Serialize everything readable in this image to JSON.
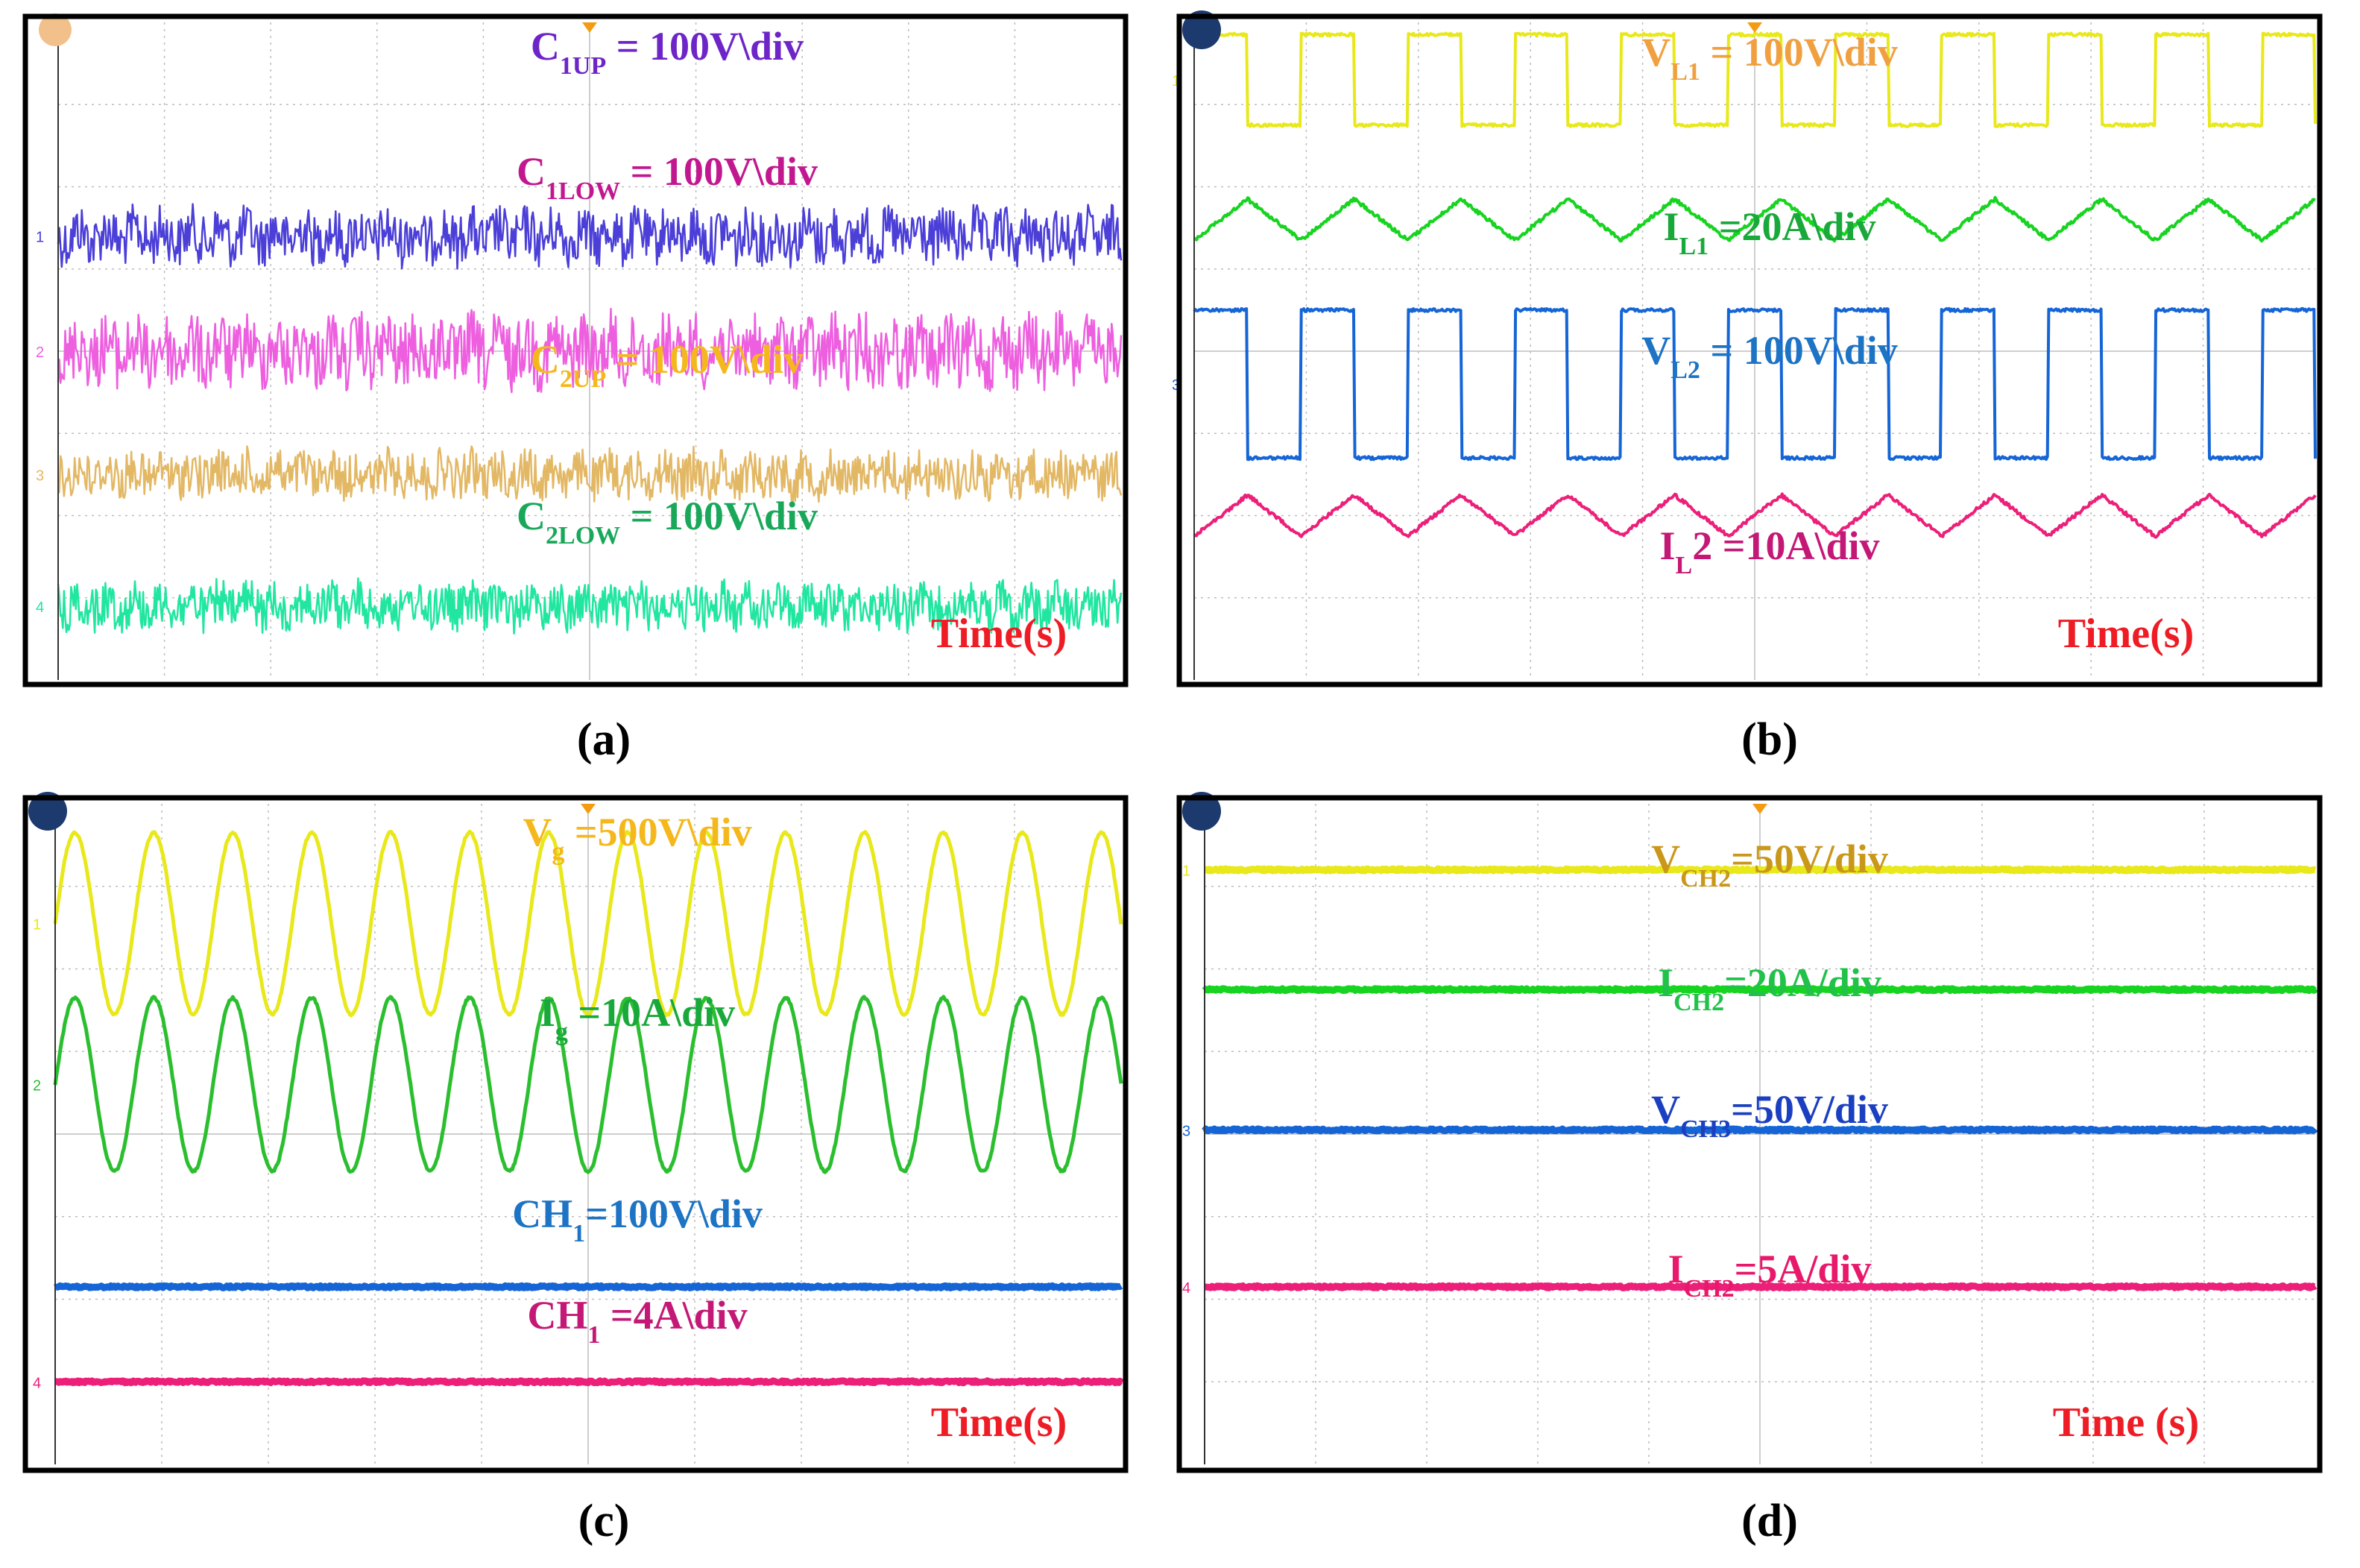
{
  "colors": {
    "purple": "#4b3fd8",
    "magenta": "#ee5fe0",
    "tan": "#e3b865",
    "mint": "#20e6a0",
    "yellow": "#e8e81a",
    "green": "#16d41f",
    "blue": "#1565d6",
    "pink": "#ec1f79",
    "dgreen": "#2bbf2f",
    "orange": "#f4a400",
    "labelPurple": "#6e25c8",
    "labelMagenta": "#c2188f",
    "labelGreen": "#19a85a",
    "labelYellowA": "#f5b81c",
    "labelOrange": "#f0a040",
    "labelGreenB": "#19a83a",
    "labelBlue": "#1d73c4",
    "labelPink": "#c41876",
    "labelGold": "#c9971a",
    "labelGreenD": "#21c14a",
    "labelNavy": "#1a3fc0",
    "labelPinkD": "#e8186a",
    "red": "#ee1c25"
  },
  "chart_data": [
    {
      "panel": "a",
      "type": "line",
      "caption": "(a)",
      "xlabel": "Time(s)",
      "ylabel": "",
      "series": [
        {
          "name": "C1UP",
          "main": "C",
          "sub": "1UP",
          "rest": " = 100V\\div",
          "color": "#4b3fd8",
          "label_color": "#6e25c8",
          "channel_marker": "1",
          "shape": "noise",
          "offset_div": 1.4,
          "amplitude_div": 0.35
        },
        {
          "name": "C1LOW",
          "main": "C",
          "sub": "1LOW",
          "rest": " = 100V\\div",
          "color": "#ee5fe0",
          "label_color": "#c2188f",
          "channel_marker": "2",
          "shape": "noise",
          "offset_div": 0.0,
          "amplitude_div": 0.45
        },
        {
          "name": "C2UP",
          "main": "C",
          "sub": "2UP",
          "rest": " = 100V\\div",
          "color": "#e3b865",
          "label_color": "#f5b81c",
          "channel_marker": "3",
          "shape": "noise",
          "offset_div": -1.5,
          "amplitude_div": 0.3
        },
        {
          "name": "C2LOW",
          "main": "C",
          "sub": "2LOW",
          "rest": " = 100V\\div",
          "color": "#20e6a0",
          "label_color": "#19a85a",
          "channel_marker": "4",
          "shape": "noise",
          "offset_div": -3.1,
          "amplitude_div": 0.3
        }
      ]
    },
    {
      "panel": "b",
      "type": "line",
      "caption": "(b)",
      "xlabel": "Time(s)",
      "ylabel": "",
      "series": [
        {
          "name": "VL1",
          "main": "V",
          "sub": "L1",
          "rest": " = 100V\\div",
          "color": "#e8e81a",
          "label_color": "#f0a040",
          "channel_marker": "1",
          "shape": "square",
          "periods": 10.5,
          "offset_div": 3.3,
          "amplitude_div": 0.55
        },
        {
          "name": "IL1",
          "main": "I",
          "sub": "L1",
          "rest": " =20A\\div",
          "color": "#16d41f",
          "label_color": "#19a83a",
          "channel_marker": "",
          "shape": "triangle",
          "periods": 10.5,
          "offset_div": 1.6,
          "amplitude_div": 0.25
        },
        {
          "name": "VL2",
          "main": "V",
          "sub": "L2",
          "rest": " = 100V\\div",
          "color": "#1565d6",
          "label_color": "#1d73c4",
          "channel_marker": "3",
          "shape": "square",
          "periods": 10.5,
          "offset_div": -0.4,
          "amplitude_div": 0.9
        },
        {
          "name": "IL2",
          "main": "I",
          "sub": "L",
          "rest": "2 =10A\\div",
          "color": "#ec1f79",
          "label_color": "#c41876",
          "channel_marker": "",
          "shape": "triangle",
          "periods": 10.5,
          "offset_div": -2.0,
          "amplitude_div": 0.25
        }
      ]
    },
    {
      "panel": "c",
      "type": "line",
      "caption": "(c)",
      "xlabel": "Time(s)",
      "ylabel": "",
      "series": [
        {
          "name": "Vg",
          "main": "V",
          "sub": "g",
          "rest": " =500V\\div",
          "color": "#e8e81a",
          "label_color": "#f5b81c",
          "channel_marker": "1",
          "shape": "sine",
          "periods": 13.5,
          "offset_div": 2.55,
          "amplitude_div": 1.1
        },
        {
          "name": "Ig",
          "main": "I",
          "sub": "g",
          "rest": " =10A\\div",
          "color": "#2bbf2f",
          "label_color": "#19a83a",
          "channel_marker": "2",
          "shape": "sine",
          "periods": 13.5,
          "offset_div": 0.6,
          "amplitude_div": 1.05
        },
        {
          "name": "CH1 voltage",
          "main": "CH",
          "sub": "1",
          "rest": "=100V\\div",
          "color": "#1565d6",
          "label_color": "#1d73c4",
          "channel_marker": "",
          "shape": "dc",
          "offset_div": -1.85,
          "amplitude_div": 0.0
        },
        {
          "name": "CH1 current",
          "main": "CH",
          "sub": "1",
          "rest": " =4A\\div",
          "color": "#ec1f79",
          "label_color": "#c41876",
          "channel_marker": "4",
          "shape": "dc",
          "offset_div": -3.0,
          "amplitude_div": 0.0
        }
      ]
    },
    {
      "panel": "d",
      "type": "line",
      "caption": "(d)",
      "xlabel": "Time (s)",
      "ylabel": "",
      "series": [
        {
          "name": "VCH2",
          "main": "V",
          "sub": "CH2",
          "rest": "=50V/div",
          "color": "#e8e81a",
          "label_color": "#c9971a",
          "channel_marker": "1",
          "shape": "dc",
          "offset_div": 3.2,
          "amplitude_div": 0.0
        },
        {
          "name": "ICH2 20A",
          "main": "I",
          "sub": "CH2",
          "rest": "=20A/div",
          "color": "#16d41f",
          "label_color": "#21c14a",
          "channel_marker": "",
          "shape": "dc",
          "offset_div": 1.75,
          "amplitude_div": 0.0
        },
        {
          "name": "VCH3",
          "main": "V",
          "sub": "CH3",
          "rest": "=50V/div",
          "color": "#1565d6",
          "label_color": "#1a3fc0",
          "channel_marker": "3",
          "shape": "dc",
          "offset_div": 0.05,
          "amplitude_div": 0.0
        },
        {
          "name": "ICH2 5A",
          "main": "I",
          "sub": "CH2",
          "rest": "=5A/div",
          "color": "#ec1f79",
          "label_color": "#e8186a",
          "channel_marker": "4",
          "shape": "dc",
          "offset_div": -1.85,
          "amplitude_div": 0.0
        }
      ]
    }
  ]
}
